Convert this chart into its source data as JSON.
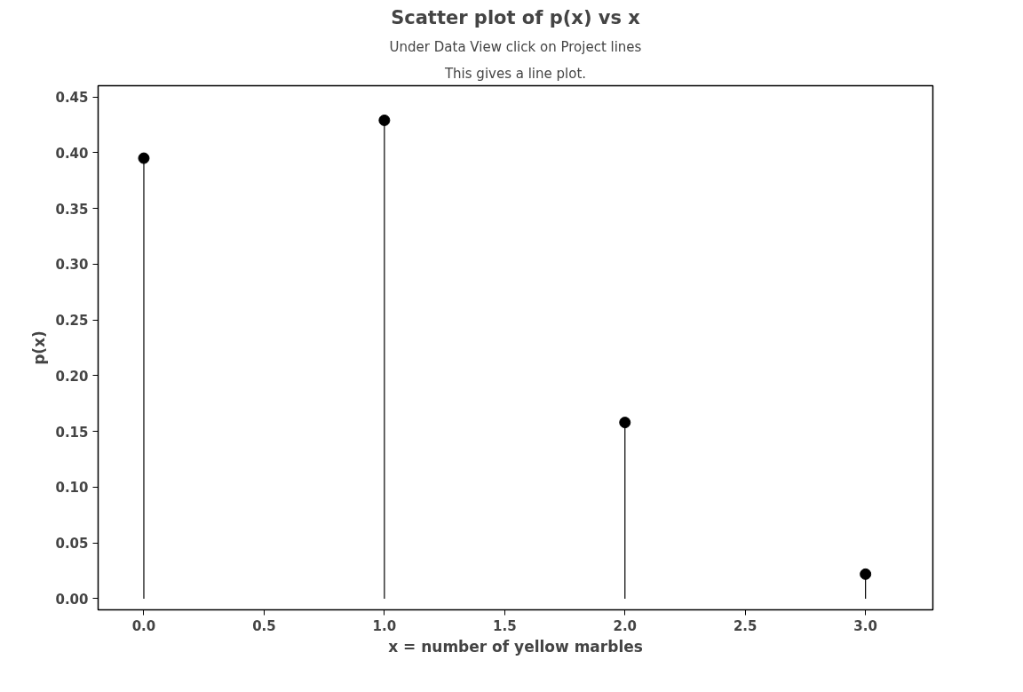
{
  "chart_data": {
    "type": "lollipop",
    "title": "Scatter plot of p(x) vs x",
    "subtitle": "Under Data View click on Project lines",
    "annotations": [
      "This gives a line plot."
    ],
    "xlabel": "x = number of yellow marbles",
    "ylabel": "p(x)",
    "x": [
      0,
      1,
      2,
      3
    ],
    "series": [
      {
        "color": "#000000",
        "values": [
          0.395,
          0.429,
          0.158,
          0.022
        ]
      }
    ],
    "xlim": [
      -0.19,
      3.28
    ],
    "ylim": [
      -0.01,
      0.46
    ],
    "xticks": [
      {
        "value": 0,
        "label": "0.0"
      },
      {
        "value": 0.5,
        "label": "0.5"
      },
      {
        "value": 1,
        "label": "1.0"
      },
      {
        "value": 1.5,
        "label": "1.5"
      },
      {
        "value": 2,
        "label": "2.0"
      },
      {
        "value": 2.5,
        "label": "2.5"
      },
      {
        "value": 3,
        "label": "3.0"
      }
    ],
    "yticks": [
      {
        "value": 0,
        "label": "0.00"
      },
      {
        "value": 0.05,
        "label": "0.05"
      },
      {
        "value": 0.1,
        "label": "0.10"
      },
      {
        "value": 0.15,
        "label": "0.15"
      },
      {
        "value": 0.2,
        "label": "0.20"
      },
      {
        "value": 0.25,
        "label": "0.25"
      },
      {
        "value": 0.3,
        "label": "0.30"
      },
      {
        "value": 0.35,
        "label": "0.35"
      },
      {
        "value": 0.4,
        "label": "0.40"
      },
      {
        "value": 0.45,
        "label": "0.45"
      }
    ],
    "marker": "circle"
  }
}
